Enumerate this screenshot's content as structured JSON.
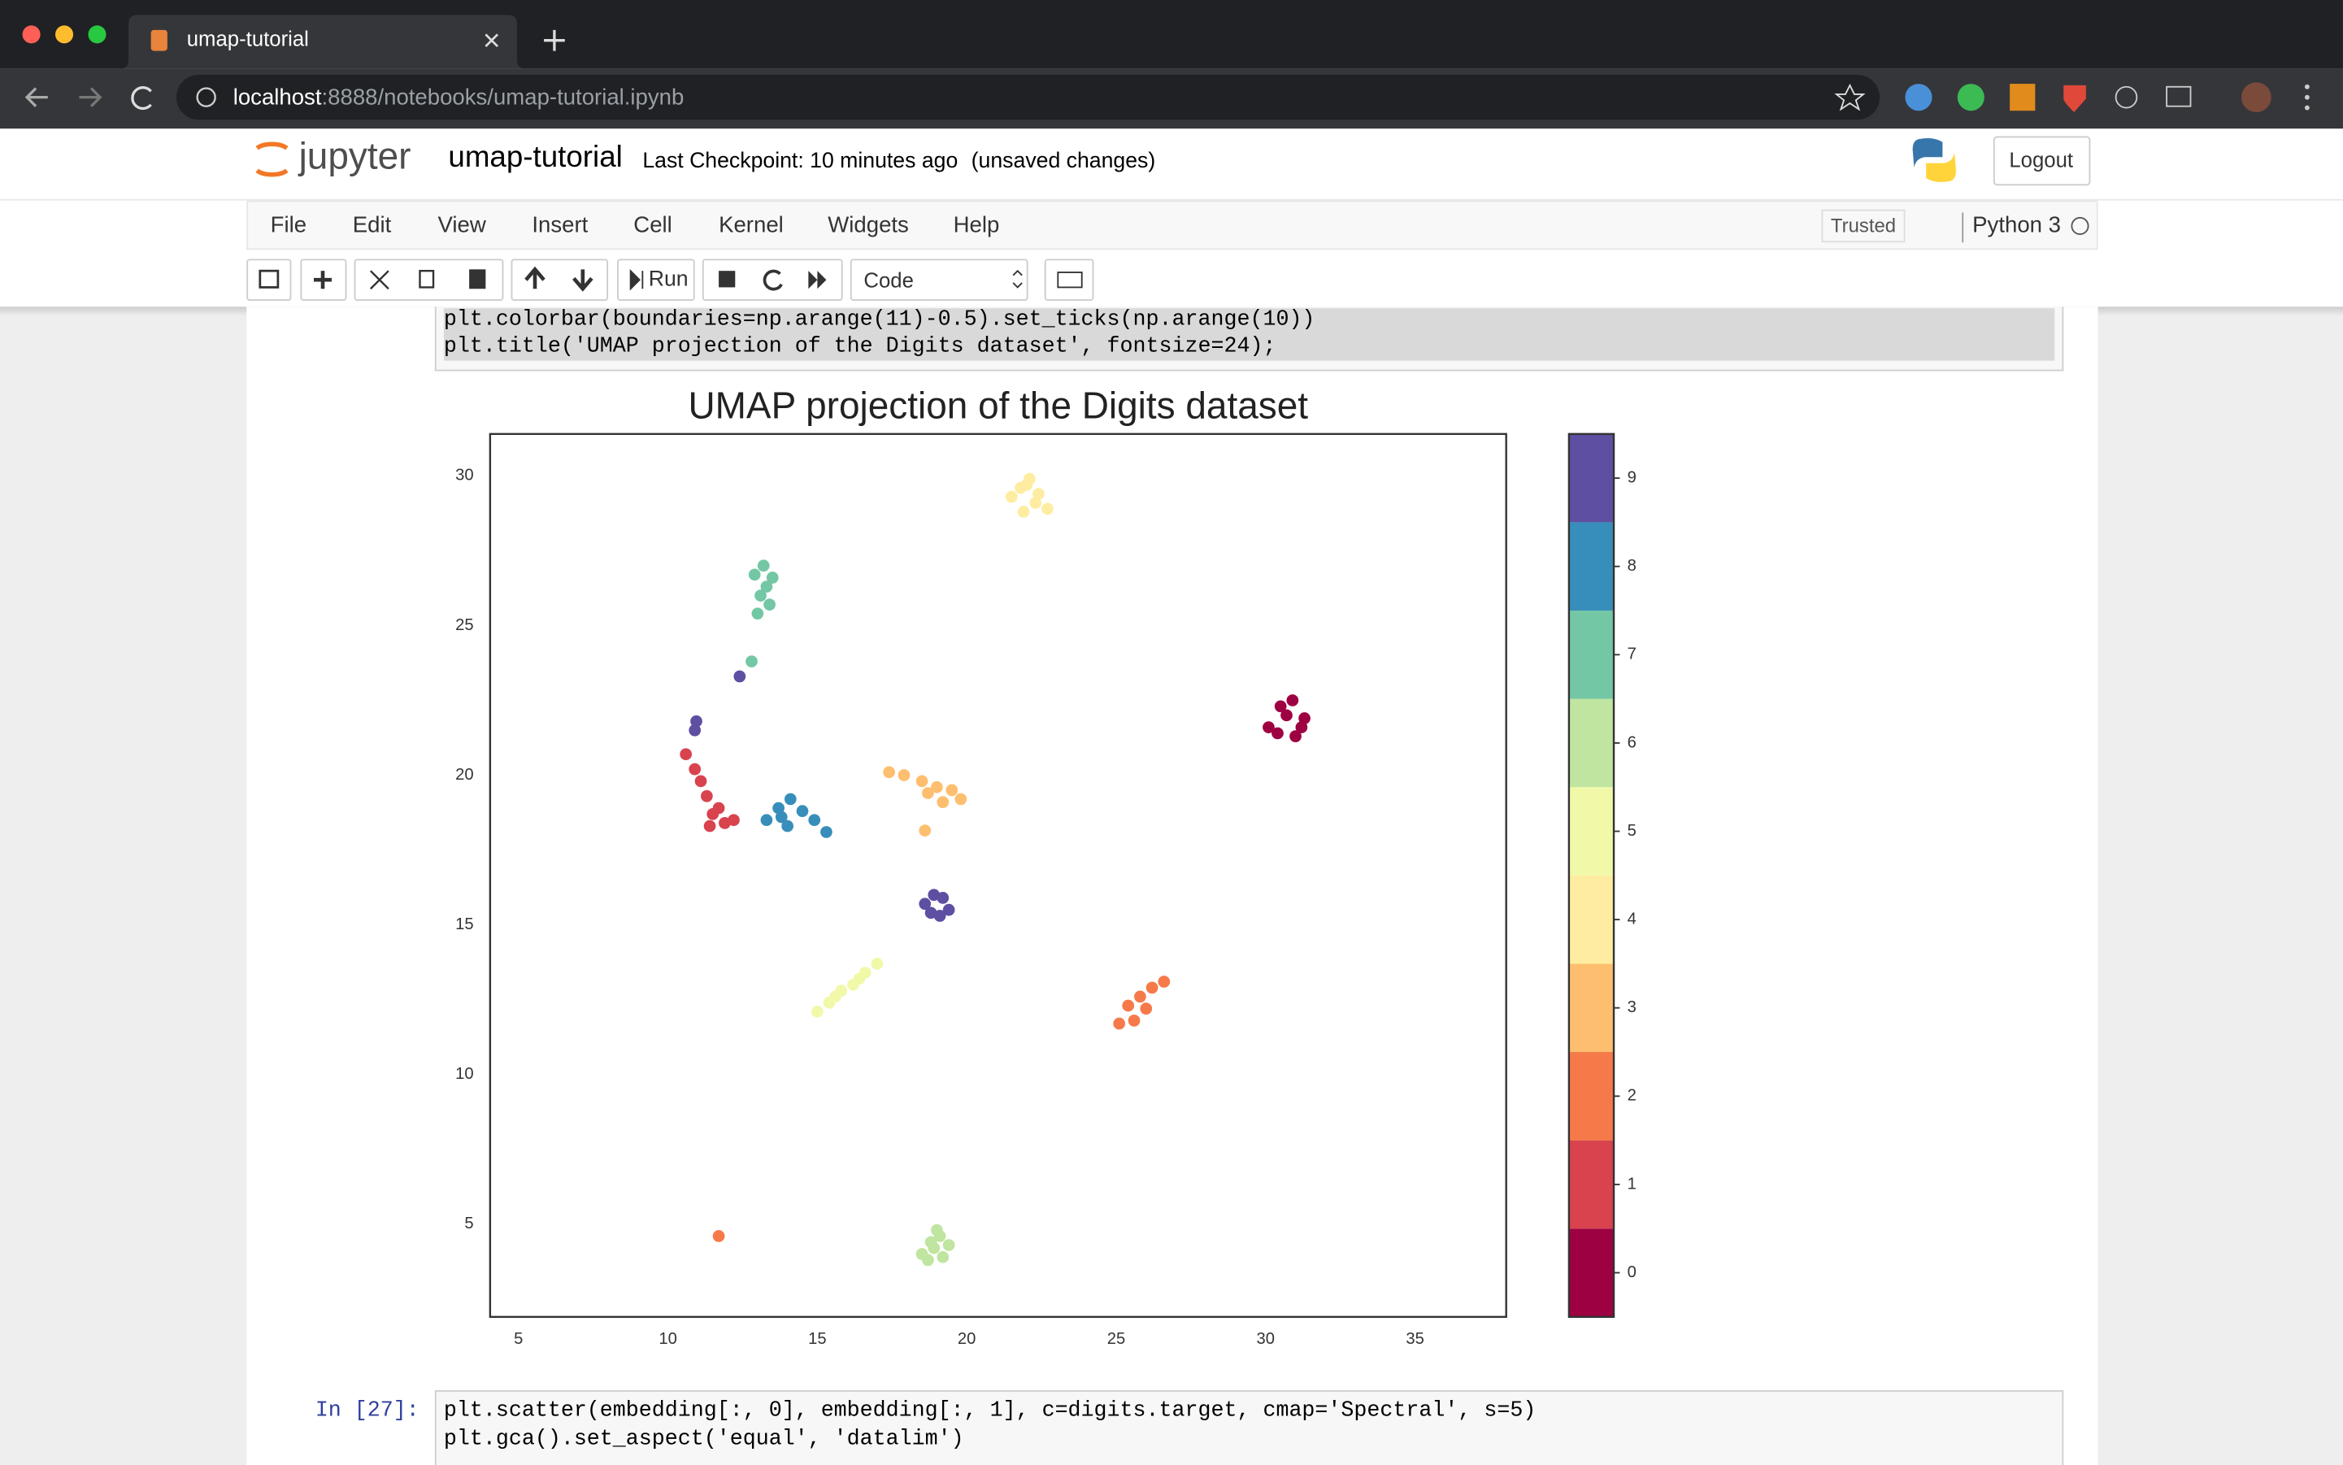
{
  "browser": {
    "tab_title": "umap-tutorial",
    "url_host": "localhost",
    "url_path": ":8888/notebooks/umap-tutorial.ipynb"
  },
  "header": {
    "logo": "jupyter",
    "notebook_name": "umap-tutorial",
    "checkpoint": "Last Checkpoint: 10 minutes ago",
    "status": "(unsaved changes)",
    "logout": "Logout"
  },
  "menu": [
    "File",
    "Edit",
    "View",
    "Insert",
    "Cell",
    "Kernel",
    "Widgets",
    "Help"
  ],
  "kernel": {
    "trusted": "Trusted",
    "name": "Python 3"
  },
  "toolbar": {
    "run": "Run",
    "cell_type": "Code"
  },
  "cells": [
    {
      "lines": [
        "plt.colorbar(boundaries=np.arange(11)-0.5).set_ticks(np.arange(10))",
        "plt.title('UMAP projection of the Digits dataset', fontsize=24);"
      ]
    },
    {
      "prompt": "In [27]:",
      "lines": [
        "plt.scatter(embedding[:, 0], embedding[:, 1], c=digits.target, cmap='Spectral', s=5)",
        "plt.gca().set_aspect('equal', 'datalim')"
      ]
    }
  ],
  "chart_data": {
    "type": "scatter",
    "title": "UMAP projection of the Digits dataset",
    "xlim": [
      4.05,
      38.05
    ],
    "ylim": [
      1.9,
      31.4
    ],
    "xticks": [
      5,
      10,
      15,
      20,
      25,
      30,
      35
    ],
    "yticks": [
      5,
      10,
      15,
      20,
      25,
      30
    ],
    "series": [
      {
        "color": "#9e0142",
        "x": [
          30.1,
          30.5,
          30.9,
          31.3,
          30.4,
          31.0,
          30.7,
          31.2
        ],
        "y": [
          21.6,
          22.3,
          22.5,
          21.9,
          21.4,
          21.3,
          22.0,
          21.6
        ]
      },
      {
        "color": "#d8434e",
        "x": [
          10.6,
          10.9,
          11.1,
          11.3,
          11.5,
          11.9,
          12.2,
          11.7,
          11.4
        ],
        "y": [
          20.7,
          20.2,
          19.8,
          19.3,
          18.7,
          18.4,
          18.5,
          18.9,
          18.3
        ]
      },
      {
        "color": "#f67a49",
        "x": [
          25.1,
          25.4,
          25.8,
          26.2,
          26.6,
          25.6,
          26.0,
          11.7
        ],
        "y": [
          11.7,
          12.3,
          12.6,
          12.9,
          13.1,
          11.8,
          12.2,
          4.6
        ]
      },
      {
        "color": "#fdbf6f",
        "x": [
          17.4,
          17.9,
          18.5,
          19.0,
          19.5,
          19.8,
          19.2,
          18.7,
          18.6
        ],
        "y": [
          20.1,
          20.0,
          19.8,
          19.6,
          19.5,
          19.2,
          19.1,
          19.4,
          18.15
        ]
      },
      {
        "color": "#feeda1",
        "x": [
          21.5,
          21.8,
          22.1,
          22.4,
          22.7,
          21.9,
          22.3,
          22.0
        ],
        "y": [
          29.3,
          29.6,
          29.9,
          29.4,
          28.9,
          28.8,
          29.1,
          29.7
        ]
      },
      {
        "color": "#f1f9a9",
        "x": [
          15.0,
          15.4,
          15.8,
          16.2,
          16.6,
          17.0,
          16.4,
          15.6
        ],
        "y": [
          12.1,
          12.4,
          12.8,
          13.0,
          13.4,
          13.7,
          13.2,
          12.6
        ]
      },
      {
        "color": "#bfe5a0",
        "x": [
          18.5,
          18.8,
          19.1,
          19.4,
          18.7,
          19.2,
          18.9,
          19.0
        ],
        "y": [
          4.0,
          4.4,
          4.6,
          4.3,
          3.8,
          3.9,
          4.2,
          4.8
        ]
      },
      {
        "color": "#74c7a5",
        "x": [
          12.9,
          13.2,
          13.5,
          13.1,
          13.4,
          13.0,
          13.3,
          12.8
        ],
        "y": [
          26.7,
          27.0,
          26.6,
          26.0,
          25.7,
          25.4,
          26.3,
          23.8
        ]
      },
      {
        "color": "#378ebb",
        "x": [
          13.3,
          13.7,
          14.1,
          14.5,
          14.9,
          15.3,
          14.0,
          13.8
        ],
        "y": [
          18.5,
          18.9,
          19.2,
          18.8,
          18.5,
          18.1,
          18.3,
          18.6
        ]
      },
      {
        "color": "#5e4fa2",
        "x": [
          18.6,
          18.9,
          19.2,
          19.4,
          18.8,
          19.1,
          10.95,
          10.9,
          12.4
        ],
        "y": [
          15.7,
          16.0,
          15.9,
          15.5,
          15.4,
          15.3,
          21.8,
          21.5,
          23.3
        ]
      }
    ],
    "colorbar": {
      "lim": [
        -0.5,
        9.5
      ],
      "ticks": [
        0,
        1,
        2,
        3,
        4,
        5,
        6,
        7,
        8,
        9
      ]
    }
  }
}
